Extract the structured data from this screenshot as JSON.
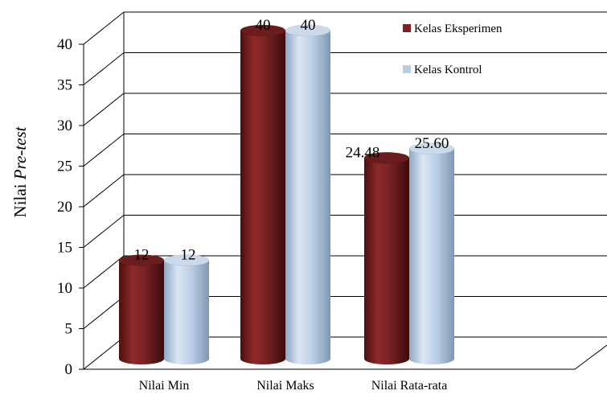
{
  "chart_data": {
    "type": "bar",
    "style": "3d-cylinder",
    "ylabel_prefix": "Nilai ",
    "ylabel_italic": "Pre-test",
    "categories": [
      "Nilai Min",
      "Nilai Maks",
      "Nilai Rata-rata"
    ],
    "series": [
      {
        "name": "Kelas Eksperimen",
        "values": [
          12,
          40,
          24.48
        ],
        "labels": [
          "12",
          "40",
          "24.48"
        ],
        "color": "#7b2323"
      },
      {
        "name": "Kelas Kontrol",
        "values": [
          12,
          40,
          25.6
        ],
        "labels": [
          "12",
          "40",
          "25.60"
        ],
        "color": "#b9cde5"
      }
    ],
    "yticks": [
      "0",
      "5",
      "10",
      "15",
      "20",
      "25",
      "30",
      "35",
      "40"
    ],
    "ylim": [
      0,
      40
    ],
    "grid": true,
    "legend": "top-right"
  }
}
